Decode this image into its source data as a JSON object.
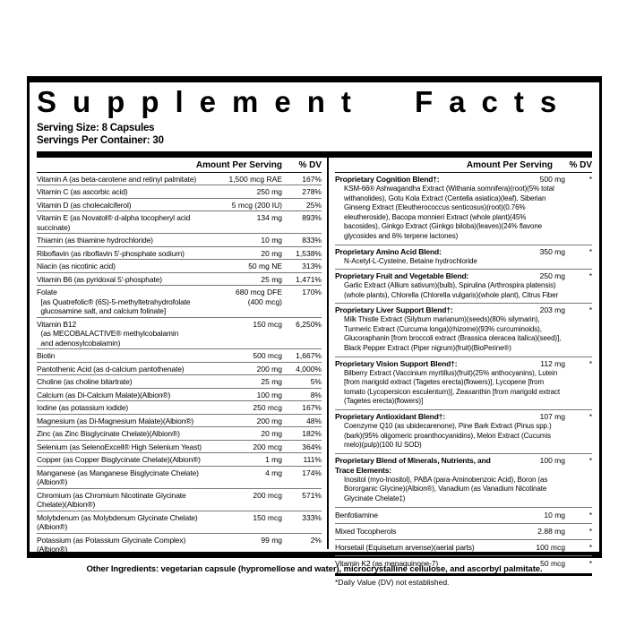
{
  "header": {
    "title": "Supplement Facts",
    "serving_size": "Serving Size: 8 Capsules",
    "servings_per_container": "Servings Per Container: 30"
  },
  "columns": {
    "amount_header": "Amount Per Serving",
    "dv_header": "% DV"
  },
  "left_rows": [
    {
      "name": "Vitamin A (as beta-carotene and retinyl palmitate)",
      "amount": "1,500 mcg RAE",
      "dv": "167%"
    },
    {
      "name": "Vitamin C (as ascorbic acid)",
      "amount": "250 mg",
      "dv": "278%"
    },
    {
      "name": "Vitamin D (as cholecalciferol)",
      "amount": "5 mcg (200 IU)",
      "dv": "25%"
    },
    {
      "name": "Vitamin E (as Novatol® d-alpha tocopheryl acid succinate)",
      "amount": "134 mg",
      "dv": "893%"
    },
    {
      "name": "Thiamin (as thiamine hydrochloride)",
      "amount": "10 mg",
      "dv": "833%"
    },
    {
      "name": "Riboflavin (as riboflavin 5'-phosphate sodium)",
      "amount": "20 mg",
      "dv": "1,538%"
    },
    {
      "name": "Niacin (as nicotinic acid)",
      "amount": "50 mg NE",
      "dv": "313%"
    },
    {
      "name": "Vitamin B6 (as pyridoxal 5'-phosphate)",
      "amount": "25 mg",
      "dv": "1,471%"
    },
    {
      "name": "Folate\n  [as Quatrefolic® (6S)-5-methyltetrahydrofolate\n  glucosamine salt, and calcium folinate]",
      "amount": "680 mcg DFE\n(400 mcg)",
      "dv": "170%"
    },
    {
      "name": "Vitamin B12\n  (as MECOBALACTIVE® methylcobalamin\n  and adenosylcobalamin)",
      "amount": "150 mcg",
      "dv": "6,250%"
    },
    {
      "name": "Biotin",
      "amount": "500 mcg",
      "dv": "1,667%"
    },
    {
      "name": "Pantothenic Acid (as d-calcium pantothenate)",
      "amount": "200 mg",
      "dv": "4,000%"
    },
    {
      "name": "Choline (as choline bitartrate)",
      "amount": "25 mg",
      "dv": "5%"
    },
    {
      "name": "Calcium (as Di-Calcium Malate)(Albion®)",
      "amount": "100 mg",
      "dv": "8%"
    },
    {
      "name": "Iodine (as potassium iodide)",
      "amount": "250 mcg",
      "dv": "167%"
    },
    {
      "name": "Magnesium (as Di-Magnesium Malate)(Albion®)",
      "amount": "200 mg",
      "dv": "48%"
    },
    {
      "name": "Zinc (as Zinc Bisglycinate Chelate)(Albion®)",
      "amount": "20 mg",
      "dv": "182%"
    },
    {
      "name": "Selenium (as SelenoExcell® High Selenium Yeast)",
      "amount": "200 mcg",
      "dv": "364%"
    },
    {
      "name": "Copper (as Copper Bisglycinate Chelate)(Albion®)",
      "amount": "1 mg",
      "dv": "111%"
    },
    {
      "name": "Manganese (as Manganese Bisglycinate Chelate)(Albion®)",
      "amount": "4 mg",
      "dv": "174%"
    },
    {
      "name": "Chromium (as Chromium Nicotinate Glycinate Chelate)(Albion®)",
      "amount": "200 mcg",
      "dv": "571%"
    },
    {
      "name": "Molybdenum (as Molybdenum Glycinate Chelate)(Albion®)",
      "amount": "150 mcg",
      "dv": "333%"
    },
    {
      "name": "Potassium (as Potassium Glycinate Complex)(Albion®)",
      "amount": "99 mg",
      "dv": "2%"
    }
  ],
  "right_rows": [
    {
      "name": "Proprietary Cognition Blend†:",
      "amount": "500 mg",
      "dv": "*",
      "weight": "bold",
      "kind": "blend",
      "detail": "KSM-66® Ashwagandha Extract (Withania somnifera)(root)(5% total withanolides), Gotu Kola Extract (Centella asiatica)(leaf), Siberian Ginseng Extract (Eleutherococcus senticosus)(root)(0.76% eleutheroside), Bacopa monnieri Extract (whole plant)(45% bacosides), Ginkgo Extract (Ginkgo biloba)(leaves)(24% flavone glycosides and 6% terpene lactones)"
    },
    {
      "name": "Proprietary Amino Acid Blend:",
      "amount": "350 mg",
      "dv": "*",
      "weight": "bold",
      "kind": "blend",
      "detail": "N-Acetyl-L-Cysteine, Betaine hydrochloride"
    },
    {
      "name": "Proprietary Fruit and Vegetable Blend:",
      "amount": "250 mg",
      "dv": "*",
      "weight": "bold",
      "kind": "blend",
      "detail": "Garlic Extract (Allium sativum)(bulb), Spirulina (Arthrospira platensis)(whole plants), Chlorella (Chlorella vulgaris)(whole plant), Citrus Fiber"
    },
    {
      "name": "Proprietary Liver Support Blend†:",
      "amount": "203 mg",
      "dv": "*",
      "weight": "bold",
      "kind": "blend",
      "detail": "Milk Thistle Extract (Silybum marianum)(seeds)(80% silymarin), Turmeric Extract (Curcuma longa)(rhizome)(93% curcuminoids), Glucoraphanin [from broccoli extract (Brassica oleracea italica)(seed)], Black Pepper Extract (Piper nigrum)(fruit)(BioPerine®)"
    },
    {
      "name": "Proprietary Vision Support Blend†:",
      "amount": "112 mg",
      "dv": "*",
      "weight": "bold",
      "kind": "blend",
      "detail": "Bilberry Extract (Vaccinium myrtillus)(fruit)(25% anthocyanins), Lutein [from marigold extract (Tagetes erecta)(flowers)], Lycopene [from tomato (Lycopersicon esculentum)], Zeaxanthin [from marigold extract (Tagetes erecta)(flowers)]"
    },
    {
      "name": "Proprietary Antioxidant Blend†:",
      "amount": "107 mg",
      "dv": "*",
      "weight": "bold",
      "kind": "blend",
      "detail": "Coenzyme Q10 (as ubidecarenone), Pine Bark Extract (Pinus spp.)(bark)(95% oligomeric proanthocyanidins), Melon Extract (Cucumis melo)(pulp)(100 IU SOD)"
    },
    {
      "name": "Proprietary Blend of Minerals, Nutrients, and Trace Elements:",
      "amount": "100 mg",
      "dv": "*",
      "weight": "bold",
      "kind": "blend",
      "detail": "Inositol (myo-Inositol), PABA (para-Aminobenzoic Acid), Boron (as Bororganic Glycine)(Albion®), Vanadium (as Vanadium Nicotinate Glycinate Chelate‡)"
    },
    {
      "name": "Benfotiamine",
      "amount": "10 mg",
      "dv": "*",
      "weight": "normal",
      "kind": "plain"
    },
    {
      "name": "Mixed Tocopherols",
      "amount": "2.88 mg",
      "dv": "*",
      "weight": "normal",
      "kind": "plain"
    },
    {
      "name": "Horsetail (Equisetum arvense)(aerial parts)",
      "amount": "100 mcg",
      "dv": "*",
      "weight": "normal",
      "kind": "plain"
    },
    {
      "name": "Vitamin K2 (as menaquinone-7)",
      "amount": "50 mcg",
      "dv": "*",
      "weight": "normal",
      "kind": "plain"
    }
  ],
  "footnote": "*Daily Value (DV) not established.",
  "other_ingredients": "Other Ingredients: vegetarian capsule (hypromellose and water), microcrystalline cellulose, and ascorbyl palmitate."
}
